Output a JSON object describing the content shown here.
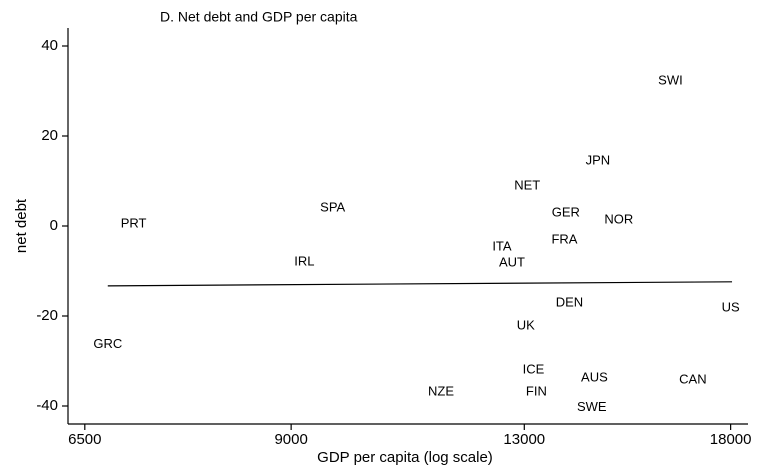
{
  "chart_data": {
    "type": "scatter",
    "title": "D. Net debt and GDP per capita",
    "x_label": "GDP per capita (log scale)",
    "y_label": "net debt",
    "xscale": "log",
    "xlim": [
      6330,
      18500
    ],
    "ylim": [
      -44,
      44
    ],
    "xticks": [
      6500,
      9000,
      13000,
      18000
    ],
    "yticks": [
      -40,
      -20,
      0,
      20,
      40
    ],
    "labels": [
      "SWI",
      "JPN",
      "NET",
      "SPA",
      "PRT",
      "GER",
      "NOR",
      "FRA",
      "ITA",
      "AUT",
      "IRL",
      "DEN",
      "US",
      "UK",
      "GRC",
      "ICE",
      "AUS",
      "CAN",
      "NZE",
      "FIN",
      "SWE"
    ],
    "x": [
      16370,
      14600,
      13060,
      9610,
      7020,
      13880,
      15090,
      13850,
      12550,
      12750,
      9190,
      13960,
      18000,
      13030,
      6740,
      13190,
      14520,
      16960,
      11400,
      13250,
      14460
    ],
    "y": [
      32.2,
      14.4,
      8.9,
      4.0,
      0.4,
      2.9,
      1.3,
      -3.1,
      -4.7,
      -8.2,
      -8.0,
      -17.1,
      -18.2,
      -22.2,
      -26.4,
      -32.0,
      -33.8,
      -34.2,
      -36.9,
      -36.9,
      -40.4
    ],
    "fit": {
      "x": [
        6740,
        18040
      ],
      "y": [
        -13.3,
        -12.4
      ]
    }
  }
}
